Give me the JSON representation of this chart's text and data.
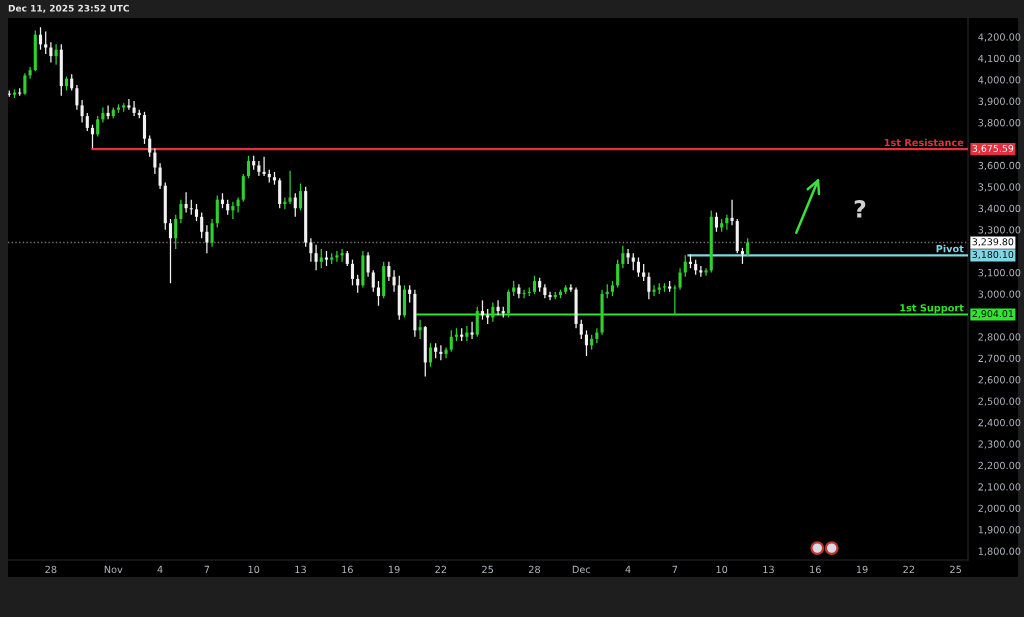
{
  "chart_data": {
    "type": "candlestick",
    "x": [
      "2025-10-25T08:00",
      "2025-10-25T16:00",
      "2025-10-26T00:00",
      "2025-10-26T08:00",
      "2025-10-26T16:00",
      "2025-10-27T00:00",
      "2025-10-27T08:00",
      "2025-10-27T16:00",
      "2025-10-28T00:00",
      "2025-10-28T08:00",
      "2025-10-28T16:00",
      "2025-10-29T00:00",
      "2025-10-29T08:00",
      "2025-10-29T16:00",
      "2025-10-30T00:00",
      "2025-10-30T08:00",
      "2025-10-30T16:00",
      "2025-10-31T00:00",
      "2025-10-31T08:00",
      "2025-10-31T16:00",
      "2025-11-01T00:00",
      "2025-11-01T08:00",
      "2025-11-01T16:00",
      "2025-11-02T00:00",
      "2025-11-02T08:00",
      "2025-11-02T16:00",
      "2025-11-03T00:00",
      "2025-11-03T08:00",
      "2025-11-03T16:00",
      "2025-11-04T00:00",
      "2025-11-04T08:00",
      "2025-11-04T16:00",
      "2025-11-05T00:00",
      "2025-11-05T08:00",
      "2025-11-05T16:00",
      "2025-11-06T00:00",
      "2025-11-06T08:00",
      "2025-11-06T16:00",
      "2025-11-07T00:00",
      "2025-11-07T08:00",
      "2025-11-07T16:00",
      "2025-11-08T00:00",
      "2025-11-08T08:00",
      "2025-11-08T16:00",
      "2025-11-09T00:00",
      "2025-11-09T08:00",
      "2025-11-09T16:00",
      "2025-11-10T00:00",
      "2025-11-10T08:00",
      "2025-11-10T16:00",
      "2025-11-11T00:00",
      "2025-11-11T08:00",
      "2025-11-11T16:00",
      "2025-11-12T00:00",
      "2025-11-12T08:00",
      "2025-11-12T16:00",
      "2025-11-13T00:00",
      "2025-11-13T08:00",
      "2025-11-13T16:00",
      "2025-11-14T00:00",
      "2025-11-14T08:00",
      "2025-11-14T16:00",
      "2025-11-15T00:00",
      "2025-11-15T08:00",
      "2025-11-15T16:00",
      "2025-11-16T00:00",
      "2025-11-16T08:00",
      "2025-11-16T16:00",
      "2025-11-17T00:00",
      "2025-11-17T08:00",
      "2025-11-17T16:00",
      "2025-11-18T00:00",
      "2025-11-18T08:00",
      "2025-11-18T16:00",
      "2025-11-19T00:00",
      "2025-11-19T08:00",
      "2025-11-19T16:00",
      "2025-11-20T00:00",
      "2025-11-20T08:00",
      "2025-11-20T16:00",
      "2025-11-21T00:00",
      "2025-11-21T08:00",
      "2025-11-21T16:00",
      "2025-11-22T00:00",
      "2025-11-22T08:00",
      "2025-11-22T16:00",
      "2025-11-23T00:00",
      "2025-11-23T08:00",
      "2025-11-23T16:00",
      "2025-11-24T00:00",
      "2025-11-24T08:00",
      "2025-11-24T16:00",
      "2025-11-25T00:00",
      "2025-11-25T08:00",
      "2025-11-25T16:00",
      "2025-11-26T00:00",
      "2025-11-26T08:00",
      "2025-11-26T16:00",
      "2025-11-27T00:00",
      "2025-11-27T08:00",
      "2025-11-27T16:00",
      "2025-11-28T00:00",
      "2025-11-28T08:00",
      "2025-11-28T16:00",
      "2025-11-29T00:00",
      "2025-11-29T08:00",
      "2025-11-29T16:00",
      "2025-11-30T00:00",
      "2025-11-30T08:00",
      "2025-11-30T16:00",
      "2025-12-01T00:00",
      "2025-12-01T08:00",
      "2025-12-01T16:00",
      "2025-12-02T00:00",
      "2025-12-02T08:00",
      "2025-12-02T16:00",
      "2025-12-03T00:00",
      "2025-12-03T08:00",
      "2025-12-03T16:00",
      "2025-12-04T00:00",
      "2025-12-04T08:00",
      "2025-12-04T16:00",
      "2025-12-05T00:00",
      "2025-12-05T08:00",
      "2025-12-05T16:00",
      "2025-12-06T00:00",
      "2025-12-06T08:00",
      "2025-12-06T16:00",
      "2025-12-07T00:00",
      "2025-12-07T08:00",
      "2025-12-07T16:00",
      "2025-12-08T00:00",
      "2025-12-08T08:00",
      "2025-12-08T16:00",
      "2025-12-09T00:00",
      "2025-12-09T08:00",
      "2025-12-09T16:00",
      "2025-12-10T00:00",
      "2025-12-10T08:00",
      "2025-12-10T16:00",
      "2025-12-11T00:00",
      "2025-12-11T08:00",
      "2025-12-11T16:00"
    ],
    "ohlc": [
      [
        3935,
        3950,
        3920,
        3930
      ],
      [
        3930,
        3955,
        3915,
        3940
      ],
      [
        3940,
        3960,
        3925,
        3935
      ],
      [
        3935,
        4030,
        3930,
        4020
      ],
      [
        4020,
        4060,
        4005,
        4045
      ],
      [
        4045,
        4230,
        4040,
        4210
      ],
      [
        4210,
        4245,
        4140,
        4165
      ],
      [
        4165,
        4225,
        4120,
        4150
      ],
      [
        4150,
        4175,
        4080,
        4110
      ],
      [
        4110,
        4165,
        4070,
        4140
      ],
      [
        4140,
        4165,
        3925,
        3970
      ],
      [
        3970,
        4015,
        3950,
        4005
      ],
      [
        4005,
        4025,
        3950,
        3960
      ],
      [
        3960,
        3975,
        3860,
        3880
      ],
      [
        3880,
        3905,
        3800,
        3830
      ],
      [
        3830,
        3845,
        3760,
        3775
      ],
      [
        3775,
        3790,
        3680,
        3745
      ],
      [
        3745,
        3830,
        3735,
        3815
      ],
      [
        3815,
        3870,
        3800,
        3845
      ],
      [
        3845,
        3880,
        3815,
        3830
      ],
      [
        3830,
        3870,
        3820,
        3860
      ],
      [
        3860,
        3885,
        3845,
        3870
      ],
      [
        3870,
        3890,
        3850,
        3880
      ],
      [
        3880,
        3910,
        3860,
        3870
      ],
      [
        3870,
        3900,
        3830,
        3845
      ],
      [
        3845,
        3860,
        3820,
        3835
      ],
      [
        3835,
        3850,
        3700,
        3725
      ],
      [
        3725,
        3740,
        3640,
        3660
      ],
      [
        3660,
        3680,
        3560,
        3590
      ],
      [
        3590,
        3610,
        3490,
        3505
      ],
      [
        3505,
        3520,
        3300,
        3330
      ],
      [
        3330,
        3350,
        3050,
        3260
      ],
      [
        3260,
        3370,
        3210,
        3350
      ],
      [
        3350,
        3440,
        3330,
        3420
      ],
      [
        3420,
        3475,
        3380,
        3400
      ],
      [
        3400,
        3440,
        3370,
        3395
      ],
      [
        3395,
        3420,
        3340,
        3360
      ],
      [
        3360,
        3380,
        3260,
        3290
      ],
      [
        3290,
        3320,
        3190,
        3240
      ],
      [
        3240,
        3350,
        3220,
        3330
      ],
      [
        3330,
        3460,
        3310,
        3440
      ],
      [
        3440,
        3470,
        3400,
        3420
      ],
      [
        3420,
        3440,
        3370,
        3390
      ],
      [
        3390,
        3430,
        3350,
        3410
      ],
      [
        3410,
        3450,
        3380,
        3440
      ],
      [
        3440,
        3560,
        3430,
        3550
      ],
      [
        3550,
        3645,
        3540,
        3620
      ],
      [
        3620,
        3645,
        3580,
        3600
      ],
      [
        3600,
        3620,
        3550,
        3570
      ],
      [
        3570,
        3640,
        3550,
        3560
      ],
      [
        3560,
        3580,
        3520,
        3545
      ],
      [
        3545,
        3570,
        3510,
        3530
      ],
      [
        3530,
        3540,
        3400,
        3420
      ],
      [
        3420,
        3450,
        3395,
        3430
      ],
      [
        3430,
        3575,
        3420,
        3450
      ],
      [
        3450,
        3470,
        3360,
        3400
      ],
      [
        3400,
        3515,
        3390,
        3480
      ],
      [
        3480,
        3500,
        3220,
        3240
      ],
      [
        3240,
        3260,
        3150,
        3190
      ],
      [
        3190,
        3230,
        3110,
        3150
      ],
      [
        3150,
        3210,
        3120,
        3170
      ],
      [
        3170,
        3200,
        3130,
        3160
      ],
      [
        3160,
        3190,
        3140,
        3170
      ],
      [
        3170,
        3200,
        3150,
        3180
      ],
      [
        3180,
        3210,
        3150,
        3190
      ],
      [
        3190,
        3200,
        3130,
        3140
      ],
      [
        3140,
        3160,
        3040,
        3070
      ],
      [
        3070,
        3090,
        3005,
        3040
      ],
      [
        3040,
        3200,
        3030,
        3180
      ],
      [
        3180,
        3195,
        3080,
        3100
      ],
      [
        3100,
        3110,
        3010,
        3030
      ],
      [
        3030,
        3060,
        2945,
        2990
      ],
      [
        2990,
        3150,
        2980,
        3130
      ],
      [
        3130,
        3150,
        3060,
        3080
      ],
      [
        3080,
        3110,
        3010,
        3040
      ],
      [
        3040,
        3085,
        2880,
        2900
      ],
      [
        2900,
        3040,
        2890,
        3020
      ],
      [
        3020,
        3040,
        2960,
        3000
      ],
      [
        3000,
        3020,
        2800,
        2830
      ],
      [
        2830,
        2880,
        2790,
        2845
      ],
      [
        2845,
        2850,
        2615,
        2680
      ],
      [
        2680,
        2770,
        2660,
        2750
      ],
      [
        2750,
        2770,
        2700,
        2730
      ],
      [
        2730,
        2760,
        2690,
        2720
      ],
      [
        2720,
        2750,
        2700,
        2740
      ],
      [
        2740,
        2830,
        2730,
        2800
      ],
      [
        2800,
        2840,
        2780,
        2810
      ],
      [
        2810,
        2840,
        2780,
        2800
      ],
      [
        2800,
        2850,
        2780,
        2820
      ],
      [
        2820,
        2870,
        2790,
        2810
      ],
      [
        2810,
        2940,
        2800,
        2920
      ],
      [
        2920,
        2970,
        2880,
        2900
      ],
      [
        2900,
        2930,
        2860,
        2890
      ],
      [
        2890,
        2960,
        2870,
        2940
      ],
      [
        2940,
        2970,
        2900,
        2920
      ],
      [
        2920,
        2940,
        2890,
        2910
      ],
      [
        2910,
        3020,
        2890,
        3010
      ],
      [
        3010,
        3060,
        2990,
        3030
      ],
      [
        3030,
        3045,
        2980,
        3000
      ],
      [
        3000,
        3020,
        2980,
        3005
      ],
      [
        3005,
        3030,
        2990,
        3010
      ],
      [
        3010,
        3085,
        3000,
        3060
      ],
      [
        3060,
        3075,
        3010,
        3030
      ],
      [
        3030,
        3045,
        2980,
        2995
      ],
      [
        2995,
        3010,
        2970,
        2985
      ],
      [
        2985,
        3010,
        2975,
        2995
      ],
      [
        2995,
        3020,
        2980,
        3010
      ],
      [
        3010,
        3040,
        3000,
        3030
      ],
      [
        3030,
        3045,
        3010,
        3020
      ],
      [
        3020,
        3030,
        2840,
        2860
      ],
      [
        2860,
        2880,
        2790,
        2810
      ],
      [
        2810,
        2830,
        2710,
        2760
      ],
      [
        2760,
        2810,
        2740,
        2790
      ],
      [
        2790,
        2840,
        2770,
        2820
      ],
      [
        2820,
        3020,
        2810,
        3000
      ],
      [
        3000,
        3045,
        2980,
        3010
      ],
      [
        3010,
        3060,
        2990,
        3040
      ],
      [
        3040,
        3160,
        3030,
        3140
      ],
      [
        3140,
        3225,
        3120,
        3190
      ],
      [
        3190,
        3210,
        3140,
        3170
      ],
      [
        3170,
        3190,
        3110,
        3150
      ],
      [
        3150,
        3170,
        3080,
        3100
      ],
      [
        3100,
        3140,
        3060,
        3080
      ],
      [
        3080,
        3100,
        2975,
        3010
      ],
      [
        3010,
        3040,
        2990,
        3020
      ],
      [
        3020,
        3050,
        3000,
        3030
      ],
      [
        3030,
        3050,
        3010,
        3035
      ],
      [
        3035,
        3060,
        3010,
        3025
      ],
      [
        3025,
        3040,
        2905,
        3030
      ],
      [
        3030,
        3120,
        3020,
        3100
      ],
      [
        3100,
        3180,
        3080,
        3150
      ],
      [
        3150,
        3185,
        3120,
        3140
      ],
      [
        3140,
        3160,
        3090,
        3110
      ],
      [
        3110,
        3130,
        3080,
        3100
      ],
      [
        3100,
        3120,
        3085,
        3110
      ],
      [
        3110,
        3390,
        3100,
        3360
      ],
      [
        3360,
        3380,
        3290,
        3310
      ],
      [
        3310,
        3350,
        3290,
        3330
      ],
      [
        3330,
        3370,
        3300,
        3355
      ],
      [
        3355,
        3440,
        3320,
        3340
      ],
      [
        3340,
        3350,
        3190,
        3200
      ],
      [
        3200,
        3215,
        3140,
        3185
      ],
      [
        3185,
        3260,
        3175,
        3239.8
      ]
    ],
    "colors": [
      "#f2f2f2",
      "#2ed12e",
      "#f2f2f2",
      "#2ed12e",
      "#2ed12e",
      "#2ed12e",
      "#f2f2f2",
      "#f2f2f2",
      "#f2f2f2",
      "#2ed12e",
      "#f2f2f2",
      "#2ed12e",
      "#f2f2f2",
      "#f2f2f2",
      "#f2f2f2",
      "#f2f2f2",
      "#f2f2f2",
      "#2ed12e",
      "#2ed12e",
      "#f2f2f2",
      "#2ed12e",
      "#2ed12e",
      "#2ed12e",
      "#f2f2f2",
      "#f2f2f2",
      "#f2f2f2",
      "#f2f2f2",
      "#f2f2f2",
      "#f2f2f2",
      "#f2f2f2",
      "#f2f2f2",
      "#f2f2f2",
      "#2ed12e",
      "#2ed12e",
      "#f2f2f2",
      "#f2f2f2",
      "#f2f2f2",
      "#f2f2f2",
      "#f2f2f2",
      "#2ed12e",
      "#2ed12e",
      "#f2f2f2",
      "#f2f2f2",
      "#2ed12e",
      "#2ed12e",
      "#2ed12e",
      "#2ed12e",
      "#f2f2f2",
      "#f2f2f2",
      "#f2f2f2",
      "#f2f2f2",
      "#f2f2f2",
      "#f2f2f2",
      "#2ed12e",
      "#2ed12e",
      "#f2f2f2",
      "#2ed12e",
      "#f2f2f2",
      "#f2f2f2",
      "#f2f2f2",
      "#2ed12e",
      "#f2f2f2",
      "#2ed12e",
      "#2ed12e",
      "#2ed12e",
      "#f2f2f2",
      "#f2f2f2",
      "#f2f2f2",
      "#2ed12e",
      "#f2f2f2",
      "#f2f2f2",
      "#f2f2f2",
      "#2ed12e",
      "#f2f2f2",
      "#f2f2f2",
      "#f2f2f2",
      "#2ed12e",
      "#f2f2f2",
      "#f2f2f2",
      "#2ed12e",
      "#f2f2f2",
      "#2ed12e",
      "#f2f2f2",
      "#f2f2f2",
      "#2ed12e",
      "#2ed12e",
      "#2ed12e",
      "#f2f2f2",
      "#2ed12e",
      "#f2f2f2",
      "#2ed12e",
      "#f2f2f2",
      "#f2f2f2",
      "#2ed12e",
      "#f2f2f2",
      "#f2f2f2",
      "#2ed12e",
      "#2ed12e",
      "#f2f2f2",
      "#2ed12e",
      "#2ed12e",
      "#2ed12e",
      "#f2f2f2",
      "#f2f2f2",
      "#f2f2f2",
      "#2ed12e",
      "#2ed12e",
      "#2ed12e",
      "#f2f2f2",
      "#f2f2f2",
      "#f2f2f2",
      "#f2f2f2",
      "#2ed12e",
      "#2ed12e",
      "#2ed12e",
      "#2ed12e",
      "#2ed12e",
      "#2ed12e",
      "#2ed12e",
      "#f2f2f2",
      "#f2f2f2",
      "#f2f2f2",
      "#f2f2f2",
      "#f2f2f2",
      "#2ed12e",
      "#2ed12e",
      "#2ed12e",
      "#f2f2f2",
      "#2ed12e",
      "#2ed12e",
      "#2ed12e",
      "#f2f2f2",
      "#f2f2f2",
      "#f2f2f2",
      "#2ed12e",
      "#2ed12e",
      "#f2f2f2",
      "#2ed12e",
      "#2ed12e",
      "#f2f2f2",
      "#f2f2f2",
      "#f2f2f2",
      "#2ed12e"
    ],
    "series": [
      {
        "type": "line",
        "name": "1st Resistance",
        "color": "#e0313d",
        "x": [
          "2025-10-30T16:00",
          "2025-12-25T19:00"
        ],
        "values": [
          3675.59,
          3675.59
        ],
        "value_labels": [
          null,
          "3,675.59"
        ]
      },
      {
        "type": "line",
        "name": "Pivot",
        "color": "#7fd6e6",
        "x": [
          "2025-12-07T21:00",
          "2025-12-25T19:00"
        ],
        "values": [
          3180.1,
          3180.1
        ],
        "value_labels": [
          null,
          "3,180.10"
        ]
      },
      {
        "type": "line",
        "name": "1st Support",
        "color": "#2ee62e",
        "x": [
          "2025-11-20T12:00",
          "2025-12-25T19:00"
        ],
        "values": [
          2904.01,
          2904.01
        ],
        "value_labels": [
          null,
          "2,904.01"
        ]
      }
    ],
    "legend": "right",
    "ref_lines": [
      {
        "axis": "y",
        "value": 3239.8,
        "label": "3,239.80",
        "color": "#ffffff",
        "line_style": "dotted"
      }
    ],
    "annotations": [
      "Dec 11, 2025 23:52 UTC",
      "?"
    ],
    "xlim": [
      "2025-10-25T06:00",
      "2025-12-25T19:00"
    ],
    "xticks": [
      {
        "value": "2025-10-28",
        "label": "28"
      },
      {
        "value": "2025-11-01",
        "label": "Nov"
      },
      {
        "value": "2025-11-04",
        "label": "4"
      },
      {
        "value": "2025-11-07",
        "label": "7"
      },
      {
        "value": "2025-11-10",
        "label": "10"
      },
      {
        "value": "2025-11-13",
        "label": "13"
      },
      {
        "value": "2025-11-16",
        "label": "16"
      },
      {
        "value": "2025-11-19",
        "label": "19"
      },
      {
        "value": "2025-11-22",
        "label": "22"
      },
      {
        "value": "2025-11-25",
        "label": "25"
      },
      {
        "value": "2025-11-28",
        "label": "28"
      },
      {
        "value": "2025-12-01",
        "label": "Dec"
      },
      {
        "value": "2025-12-04",
        "label": "4"
      },
      {
        "value": "2025-12-07",
        "label": "7"
      },
      {
        "value": "2025-12-10",
        "label": "10"
      },
      {
        "value": "2025-12-13",
        "label": "13"
      },
      {
        "value": "2025-12-16",
        "label": "16"
      },
      {
        "value": "2025-12-19",
        "label": "19"
      },
      {
        "value": "2025-12-22",
        "label": "22"
      },
      {
        "value": "2025-12-25",
        "label": "25"
      }
    ],
    "ylim": [
      1758,
      4288
    ],
    "yticks": [
      {
        "value": 1800,
        "label": "1,800.00"
      },
      {
        "value": 1900,
        "label": "1,900.00"
      },
      {
        "value": 2000,
        "label": "2,000.00"
      },
      {
        "value": 2100,
        "label": "2,100.00"
      },
      {
        "value": 2200,
        "label": "2,200.00"
      },
      {
        "value": 2300,
        "label": "2,300.00"
      },
      {
        "value": 2400,
        "label": "2,400.00"
      },
      {
        "value": 2500,
        "label": "2,500.00"
      },
      {
        "value": 2600,
        "label": "2,600.00"
      },
      {
        "value": 2700,
        "label": "2,700.00"
      },
      {
        "value": 2800,
        "label": "2,800.00"
      },
      {
        "value": 3000,
        "label": "3,000.00"
      },
      {
        "value": 3100,
        "label": "3,100.00"
      },
      {
        "value": 3300,
        "label": "3,300.00"
      },
      {
        "value": 3400,
        "label": "3,400.00"
      },
      {
        "value": 3500,
        "label": "3,500.00"
      },
      {
        "value": 3600,
        "label": "3,600.00"
      },
      {
        "value": 3800,
        "label": "3,800.00"
      },
      {
        "value": 3900,
        "label": "3,900.00"
      },
      {
        "value": 4000,
        "label": "4,000.00"
      },
      {
        "value": 4100,
        "label": "4,100.00"
      },
      {
        "value": 4200,
        "label": "4,200.00"
      }
    ]
  }
}
